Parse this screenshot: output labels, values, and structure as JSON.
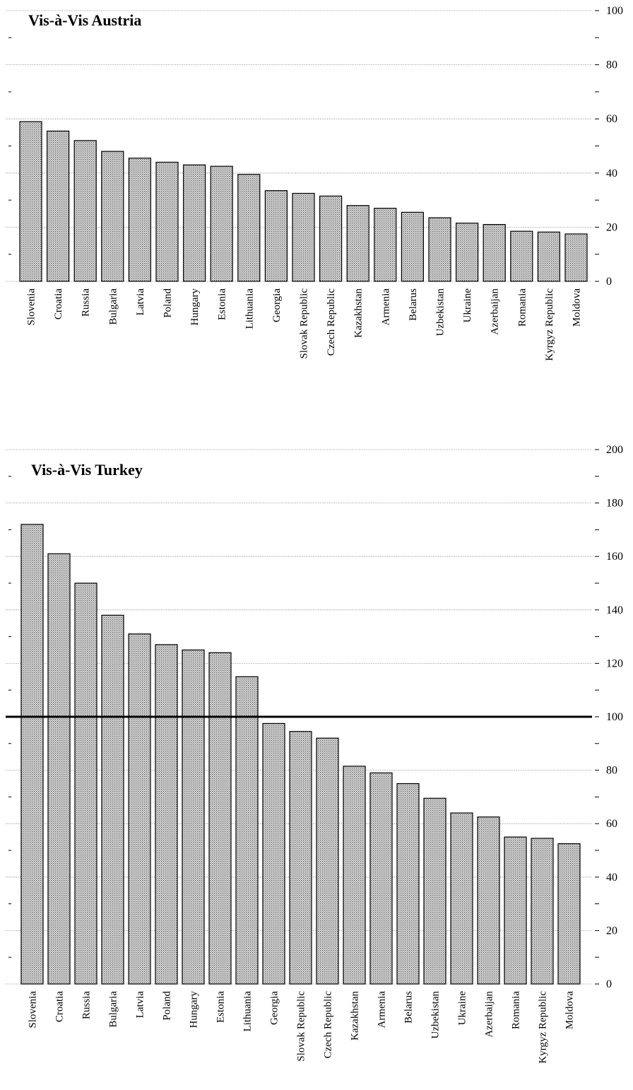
{
  "chart_data": [
    {
      "type": "bar",
      "title": "Vis-à-Vis Austria",
      "categories": [
        "Slovenia",
        "Croatia",
        "Russia",
        "Bulgaria",
        "Latvia",
        "Poland",
        "Hungary",
        "Estonia",
        "Lithuania",
        "Georgia",
        "Slovak Republic",
        "Czech Republic",
        "Kazakhstan",
        "Armenia",
        "Belarus",
        "Uzbekistan",
        "Ukraine",
        "Azerbaijan",
        "Romania",
        "Kyrgyz Republic",
        "Moldova"
      ],
      "values": [
        59,
        55.5,
        52,
        48,
        45.5,
        44,
        43,
        42.5,
        39.5,
        33.5,
        32.5,
        31.5,
        28,
        27,
        25.5,
        23.5,
        21.5,
        21,
        18.5,
        18.2,
        17.5
      ],
      "ylim": [
        0,
        100
      ],
      "yticks": [
        "0",
        "20",
        "40",
        "60",
        "80",
        "100"
      ],
      "grid": true
    },
    {
      "type": "bar",
      "title": "Vis-à-Vis Turkey",
      "categories": [
        "Slovenia",
        "Croatia",
        "Russia",
        "Bulgaria",
        "Latvia",
        "Poland",
        "Hungary",
        "Estonia",
        "Lithuania",
        "Georgia",
        "Slovak Republic",
        "Czech Republic",
        "Kazakhstan",
        "Armenia",
        "Belarus",
        "Uzbekistan",
        "Ukraine",
        "Azerbaijan",
        "Romania",
        "Kyrgyz Republic",
        "Moldova"
      ],
      "values": [
        172,
        161,
        150,
        138,
        131,
        127,
        125,
        124,
        115,
        97.5,
        94.5,
        92,
        81.5,
        79,
        75,
        69.5,
        64,
        62.5,
        55,
        54.5,
        52.5
      ],
      "ylim": [
        0,
        200
      ],
      "yticks": [
        "0",
        "20",
        "40",
        "60",
        "80",
        "100",
        "120",
        "140",
        "160",
        "180",
        "200"
      ],
      "reference_line": 100,
      "grid": true
    }
  ]
}
